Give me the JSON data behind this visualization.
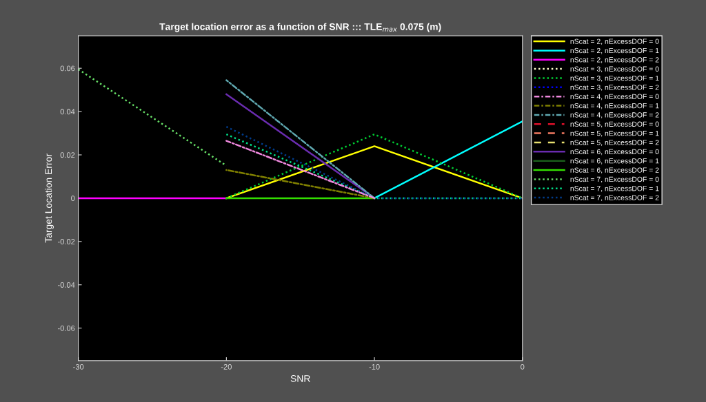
{
  "chart_data": {
    "type": "line",
    "title": "Target location error as a function of SNR ::: TLE$_{max}$ 0.075 (m)",
    "xlabel": "SNR",
    "ylabel": "Target Location Error",
    "x": [
      -30,
      -20,
      -10,
      0
    ],
    "xlim": [
      -30,
      0
    ],
    "xticks": [
      -30,
      -20,
      -10,
      0
    ],
    "ylim": [
      -0.075,
      0.075
    ],
    "yticks": [
      -0.06,
      -0.04,
      -0.02,
      {
        "value": 0,
        "label": "0"
      },
      0.02,
      0.04,
      0.06
    ],
    "grid": false,
    "legend": "top right",
    "marker": "none",
    "series": [
      {
        "name": "nScat = 2, nExcessDOF = 0",
        "color": "#ffff00",
        "line_style": "solid",
        "values": [
          null,
          0,
          0.024,
          0
        ]
      },
      {
        "name": "nScat = 2, nExcessDOF = 1",
        "color": "#00ffff",
        "line_style": "solid",
        "values": [
          null,
          null,
          0,
          0.0355
        ]
      },
      {
        "name": "nScat = 2, nExcessDOF = 2",
        "color": "#ff00ff",
        "line_style": "solid",
        "values": [
          0,
          0,
          null,
          null
        ]
      },
      {
        "name": "nScat = 3, nExcessDOF = 0",
        "color": "#ffffcc",
        "line_style": "dotted",
        "values": [
          null,
          null,
          null,
          null
        ]
      },
      {
        "name": "nScat = 3, nExcessDOF = 1",
        "color": "#00cc33",
        "line_style": "dotted",
        "values": [
          null,
          0,
          0.0295,
          0
        ]
      },
      {
        "name": "nScat = 3, nExcessDOF = 2",
        "color": "#0000ff",
        "line_style": "dotted",
        "values": [
          null,
          null,
          null,
          null
        ]
      },
      {
        "name": "nScat = 4, nExcessDOF = 0",
        "color": "#ee88dd",
        "line_style": "dashdot",
        "values": [
          null,
          0.0265,
          0,
          null
        ]
      },
      {
        "name": "nScat = 4, nExcessDOF = 1",
        "color": "#808000",
        "line_style": "dashdot",
        "values": [
          null,
          0.013,
          0,
          null
        ]
      },
      {
        "name": "nScat = 4, nExcessDOF = 2",
        "color": "#5fa8b0",
        "line_style": "dashdot",
        "values": [
          null,
          0.0545,
          0,
          null
        ]
      },
      {
        "name": "nScat = 5, nExcessDOF = 0",
        "color": "#e0102a",
        "line_style": "dashed",
        "values": [
          null,
          null,
          null,
          null
        ]
      },
      {
        "name": "nScat = 5, nExcessDOF = 1",
        "color": "#f07860",
        "line_style": "dashed",
        "values": [
          null,
          null,
          null,
          null
        ]
      },
      {
        "name": "nScat = 5, nExcessDOF = 2",
        "color": "#e8e070",
        "line_style": "dashed",
        "values": [
          null,
          null,
          null,
          null
        ]
      },
      {
        "name": "nScat = 6, nExcessDOF = 0",
        "color": "#6a2cb0",
        "line_style": "solid",
        "values": [
          null,
          0.048,
          0,
          null
        ]
      },
      {
        "name": "nScat = 6, nExcessDOF = 1",
        "color": "#1a5c1a",
        "line_style": "solid",
        "values": [
          null,
          null,
          null,
          null
        ]
      },
      {
        "name": "nScat = 6, nExcessDOF = 2",
        "color": "#33dd00",
        "line_style": "solid",
        "values": [
          null,
          0,
          0,
          null
        ]
      },
      {
        "name": "nScat = 7, nExcessDOF = 0",
        "color": "#66dd66",
        "line_style": "dotted",
        "values": [
          0.0595,
          0.015,
          null,
          null
        ]
      },
      {
        "name": "nScat = 7, nExcessDOF = 1",
        "color": "#00dd88",
        "line_style": "dotted",
        "values": [
          null,
          0.0295,
          0,
          0
        ]
      },
      {
        "name": "nScat = 7, nExcessDOF = 2",
        "color": "#003c8c",
        "line_style": "dotted",
        "values": [
          null,
          0.033,
          0,
          0
        ]
      }
    ]
  }
}
